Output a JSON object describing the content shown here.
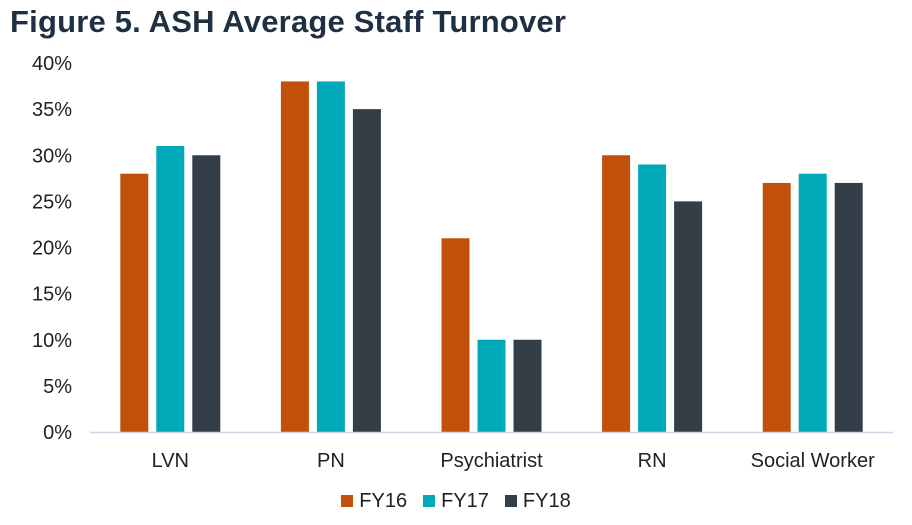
{
  "chart_data": {
    "type": "bar",
    "title": "Figure 5. ASH Average Staff Turnover",
    "categories": [
      "LVN",
      "PN",
      "Psychiatrist",
      "RN",
      "Social Worker"
    ],
    "series": [
      {
        "name": "FY16",
        "color": "#c0500a",
        "values": [
          28,
          38,
          21,
          30,
          27
        ]
      },
      {
        "name": "FY17",
        "color": "#00a9b8",
        "values": [
          31,
          38,
          10,
          29,
          28
        ]
      },
      {
        "name": "FY18",
        "color": "#333e48",
        "values": [
          30,
          35,
          10,
          25,
          27
        ]
      }
    ],
    "y_ticks": [
      "0%",
      "5%",
      "10%",
      "15%",
      "20%",
      "25%",
      "30%",
      "35%",
      "40%"
    ],
    "ylim": [
      0,
      40
    ],
    "y_unit": "%",
    "xlabel": "",
    "ylabel": "",
    "grid": false,
    "legend_position": "bottom"
  }
}
